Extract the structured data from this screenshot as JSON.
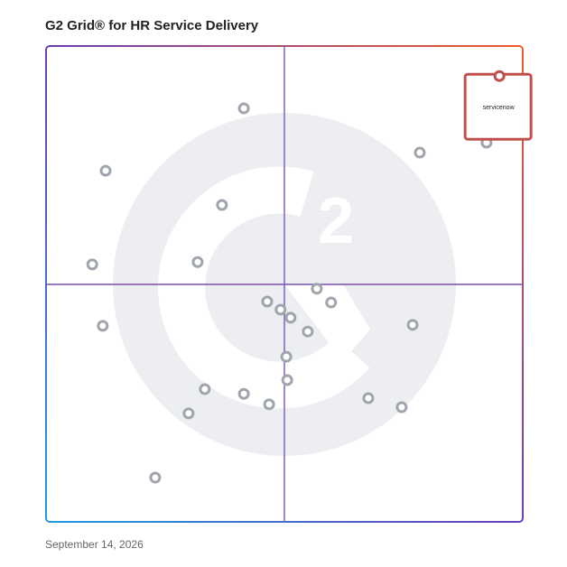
{
  "chart_data": {
    "type": "scatter",
    "title": "G2 Grid® for HR Service Delivery",
    "date": "September 14, 2026",
    "xlim": [
      0,
      100
    ],
    "ylim": [
      0,
      100
    ],
    "series": [
      {
        "color": "#a0a4ad",
        "x": [
          41.5,
          12.5,
          36.9,
          9.7,
          31.8,
          78.4,
          92.4,
          11.9,
          46.4,
          49.2,
          51.3,
          56.8,
          59.8,
          54.9,
          76.9,
          50.4,
          50.6,
          33.3,
          41.5,
          46.8,
          29.9,
          67.6,
          74.6,
          22.9
        ],
        "y": [
          86.9,
          73.8,
          66.6,
          54.1,
          54.6,
          77.6,
          79.7,
          41.2,
          46.3,
          44.6,
          42.9,
          49.0,
          46.1,
          40.0,
          41.4,
          34.7,
          29.8,
          27.9,
          26.9,
          24.7,
          22.8,
          26.0,
          24.1,
          9.3
        ]
      },
      {
        "name": "servicenow",
        "color": "#c0504d",
        "x": [
          95.1
        ],
        "y": [
          93.7
        ]
      }
    ]
  }
}
